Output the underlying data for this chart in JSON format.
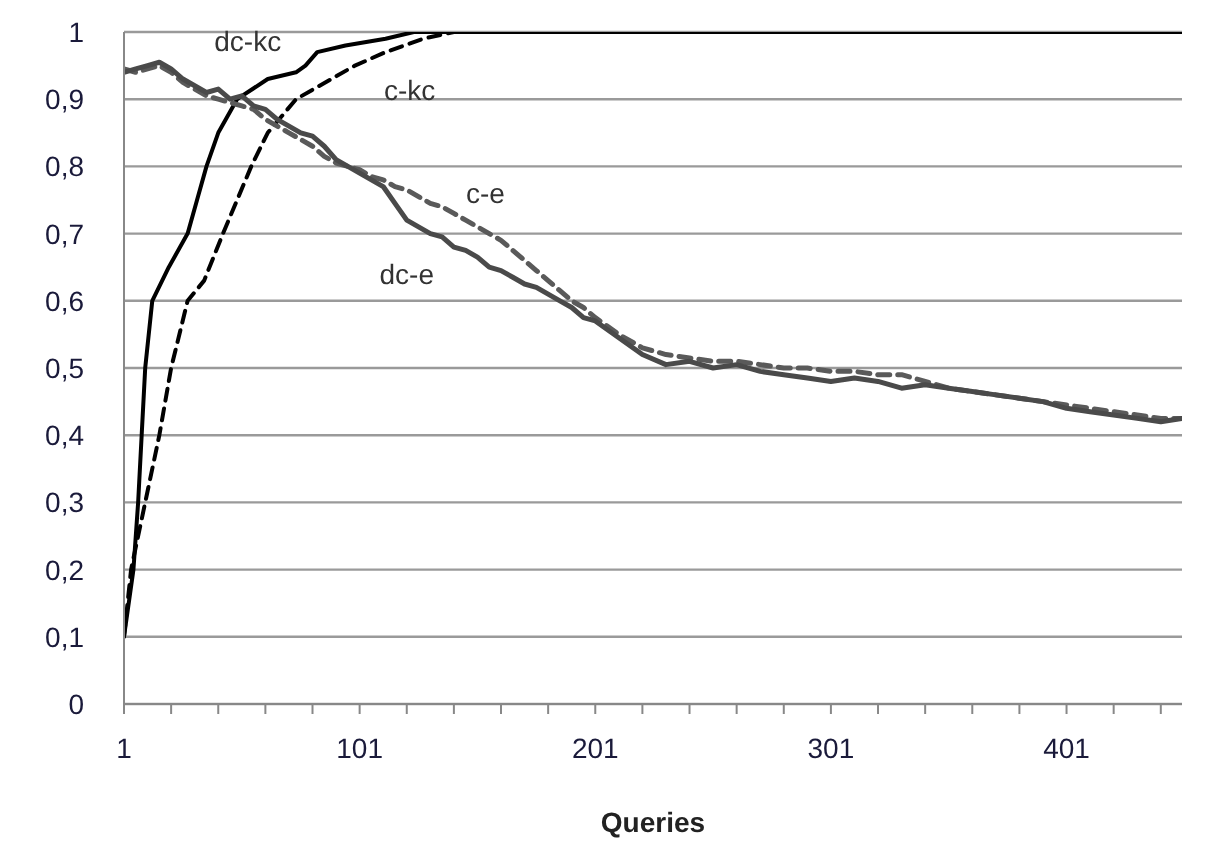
{
  "chart_data": {
    "type": "line",
    "xlabel": "Queries",
    "xlim": [
      1,
      450
    ],
    "ylim": [
      0,
      1
    ],
    "xticks": [
      1,
      {
        "value": 21,
        "label": null
      },
      {
        "value": 41,
        "label": null
      },
      {
        "value": 61,
        "label": null
      },
      {
        "value": 81,
        "label": null
      },
      101,
      {
        "value": 121,
        "label": null
      },
      {
        "value": 141,
        "label": null
      },
      {
        "value": 161,
        "label": null
      },
      {
        "value": 181,
        "label": null
      },
      201,
      {
        "value": 221,
        "label": null
      },
      {
        "value": 241,
        "label": null
      },
      {
        "value": 261,
        "label": null
      },
      {
        "value": 281,
        "label": null
      },
      301,
      {
        "value": 321,
        "label": null
      },
      {
        "value": 341,
        "label": null
      },
      {
        "value": 361,
        "label": null
      },
      {
        "value": 381,
        "label": null
      },
      401,
      {
        "value": 421,
        "label": null
      },
      {
        "value": 441,
        "label": null
      }
    ],
    "yticks": [
      0,
      {
        "value": 0.1,
        "label": "0,1"
      },
      {
        "value": 0.2,
        "label": "0,2"
      },
      {
        "value": 0.3,
        "label": "0,3"
      },
      {
        "value": 0.4,
        "label": "0,4"
      },
      {
        "value": 0.5,
        "label": "0,5"
      },
      {
        "value": 0.6,
        "label": "0,6"
      },
      {
        "value": 0.7,
        "label": "0,7"
      },
      {
        "value": 0.8,
        "label": "0,8"
      },
      {
        "value": 0.9,
        "label": "0,9"
      },
      1
    ],
    "grid": "y",
    "legend": false,
    "marker": "none",
    "series": [
      {
        "name": "dc-kc",
        "color": "#000000",
        "line_style": "solid",
        "x": [
          1,
          5,
          7,
          8.5,
          10,
          13,
          20,
          28,
          32,
          36,
          41,
          49,
          62,
          74,
          78,
          83,
          95,
          112,
          124,
          450
        ],
        "values": [
          0.1,
          0.2,
          0.3,
          0.4,
          0.5,
          0.6,
          0.65,
          0.7,
          0.75,
          0.8,
          0.85,
          0.9,
          0.93,
          0.94,
          0.95,
          0.97,
          0.98,
          0.99,
          1,
          1
        ]
      },
      {
        "name": "c-kc",
        "color": "#000000",
        "line_style": "dashed",
        "x": [
          1,
          4,
          10,
          16,
          21,
          28,
          35,
          43,
          55,
          62,
          74,
          99,
          112,
          128,
          141,
          450
        ],
        "values": [
          0.1,
          0.2,
          0.3,
          0.4,
          0.5,
          0.6,
          0.63,
          0.7,
          0.8,
          0.85,
          0.9,
          0.95,
          0.97,
          0.99,
          1,
          1
        ]
      },
      {
        "name": "c-e",
        "color": "#5a5a5a",
        "line_style": "dashed",
        "x": [
          1,
          6,
          11,
          16,
          21,
          26,
          31,
          36,
          41,
          46,
          51,
          56,
          61,
          66,
          71,
          76,
          81,
          86,
          91,
          96,
          101,
          106,
          111,
          116,
          121,
          126,
          131,
          136,
          141,
          146,
          151,
          156,
          161,
          166,
          171,
          176,
          181,
          186,
          191,
          196,
          201,
          211,
          221,
          231,
          241,
          251,
          261,
          271,
          281,
          291,
          301,
          311,
          321,
          331,
          341,
          351,
          361,
          371,
          381,
          391,
          401,
          411,
          421,
          431,
          441,
          450
        ],
        "values": [
          0.945,
          0.94,
          0.945,
          0.95,
          0.94,
          0.925,
          0.915,
          0.905,
          0.9,
          0.895,
          0.89,
          0.885,
          0.87,
          0.86,
          0.85,
          0.84,
          0.83,
          0.815,
          0.805,
          0.8,
          0.795,
          0.785,
          0.78,
          0.77,
          0.765,
          0.755,
          0.745,
          0.74,
          0.73,
          0.72,
          0.71,
          0.7,
          0.69,
          0.675,
          0.66,
          0.645,
          0.63,
          0.615,
          0.6,
          0.59,
          0.575,
          0.55,
          0.53,
          0.52,
          0.515,
          0.51,
          0.51,
          0.505,
          0.5,
          0.5,
          0.495,
          0.495,
          0.49,
          0.49,
          0.48,
          0.47,
          0.465,
          0.46,
          0.455,
          0.45,
          0.445,
          0.44,
          0.435,
          0.43,
          0.425,
          0.425
        ]
      },
      {
        "name": "dc-e",
        "color": "#4a4a4a",
        "line_style": "solid",
        "x": [
          1,
          6,
          11,
          16,
          21,
          26,
          31,
          36,
          41,
          46,
          51,
          56,
          61,
          66,
          71,
          76,
          81,
          86,
          91,
          96,
          101,
          106,
          111,
          116,
          121,
          126,
          131,
          136,
          141,
          146,
          151,
          156,
          161,
          166,
          171,
          176,
          181,
          186,
          191,
          196,
          201,
          211,
          221,
          231,
          241,
          251,
          261,
          271,
          281,
          291,
          301,
          311,
          321,
          331,
          341,
          351,
          361,
          371,
          381,
          391,
          401,
          411,
          421,
          431,
          441,
          450
        ],
        "values": [
          0.94,
          0.945,
          0.95,
          0.955,
          0.945,
          0.93,
          0.92,
          0.91,
          0.915,
          0.9,
          0.905,
          0.89,
          0.885,
          0.87,
          0.86,
          0.85,
          0.845,
          0.83,
          0.81,
          0.8,
          0.79,
          0.78,
          0.77,
          0.745,
          0.72,
          0.71,
          0.7,
          0.695,
          0.68,
          0.675,
          0.665,
          0.65,
          0.645,
          0.635,
          0.625,
          0.62,
          0.61,
          0.6,
          0.59,
          0.575,
          0.57,
          0.545,
          0.52,
          0.505,
          0.51,
          0.5,
          0.505,
          0.495,
          0.49,
          0.485,
          0.48,
          0.485,
          0.48,
          0.47,
          0.475,
          0.47,
          0.465,
          0.46,
          0.455,
          0.45,
          0.44,
          0.435,
          0.43,
          0.425,
          0.42,
          0.425
        ]
      }
    ]
  }
}
